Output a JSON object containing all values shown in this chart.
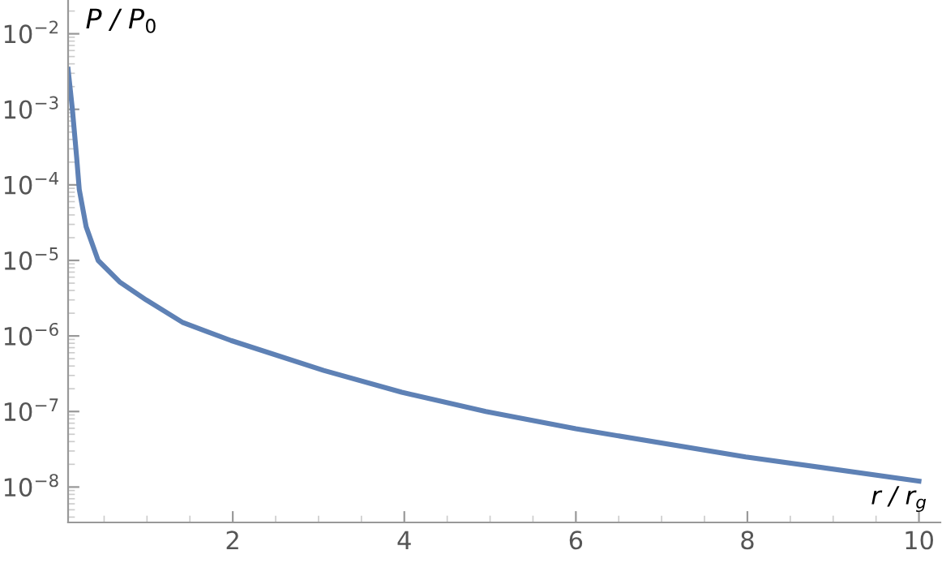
{
  "chart_data": {
    "type": "line",
    "xlabel": "r / r$_{g}$",
    "ylabel": "P / P$_{0}$",
    "log": "y",
    "x": [
      0.08,
      0.13,
      0.18,
      0.21,
      0.29,
      0.43,
      0.68,
      0.99,
      1.42,
      1.98,
      3.06,
      3.97,
      4.95,
      6.0,
      7.98,
      10.0
    ],
    "series": [
      {
        "color": "#5e81b5",
        "values": [
          0.0034,
          0.001,
          0.00023,
          8.7e-05,
          2.8e-05,
          1e-05,
          5.2e-06,
          3e-06,
          1.5e-06,
          8.7e-07,
          3.5e-07,
          1.8e-07,
          1e-07,
          5.9e-08,
          2.5e-08,
          1.2e-08
        ]
      }
    ],
    "xlim": [
      0.08,
      10.25
    ],
    "ylim": [
      3.4e-09,
      0.028
    ],
    "xticks": [
      2,
      4,
      6,
      8,
      10
    ],
    "yticks": [
      {
        "value": 1e-08,
        "label": "10$^{−8}$"
      },
      {
        "value": 1e-07,
        "label": "10$^{−7}$"
      },
      {
        "value": 1e-06,
        "label": "10$^{−6}$"
      },
      {
        "value": 1e-05,
        "label": "10$^{−5}$"
      },
      {
        "value": 0.0001,
        "label": "10$^{−4}$"
      },
      {
        "value": 0.001,
        "label": "10$^{−3}$"
      },
      {
        "value": 0.01,
        "label": "10$^{−2}$"
      }
    ],
    "grid": false,
    "marker": "none",
    "line_style": "solid"
  }
}
